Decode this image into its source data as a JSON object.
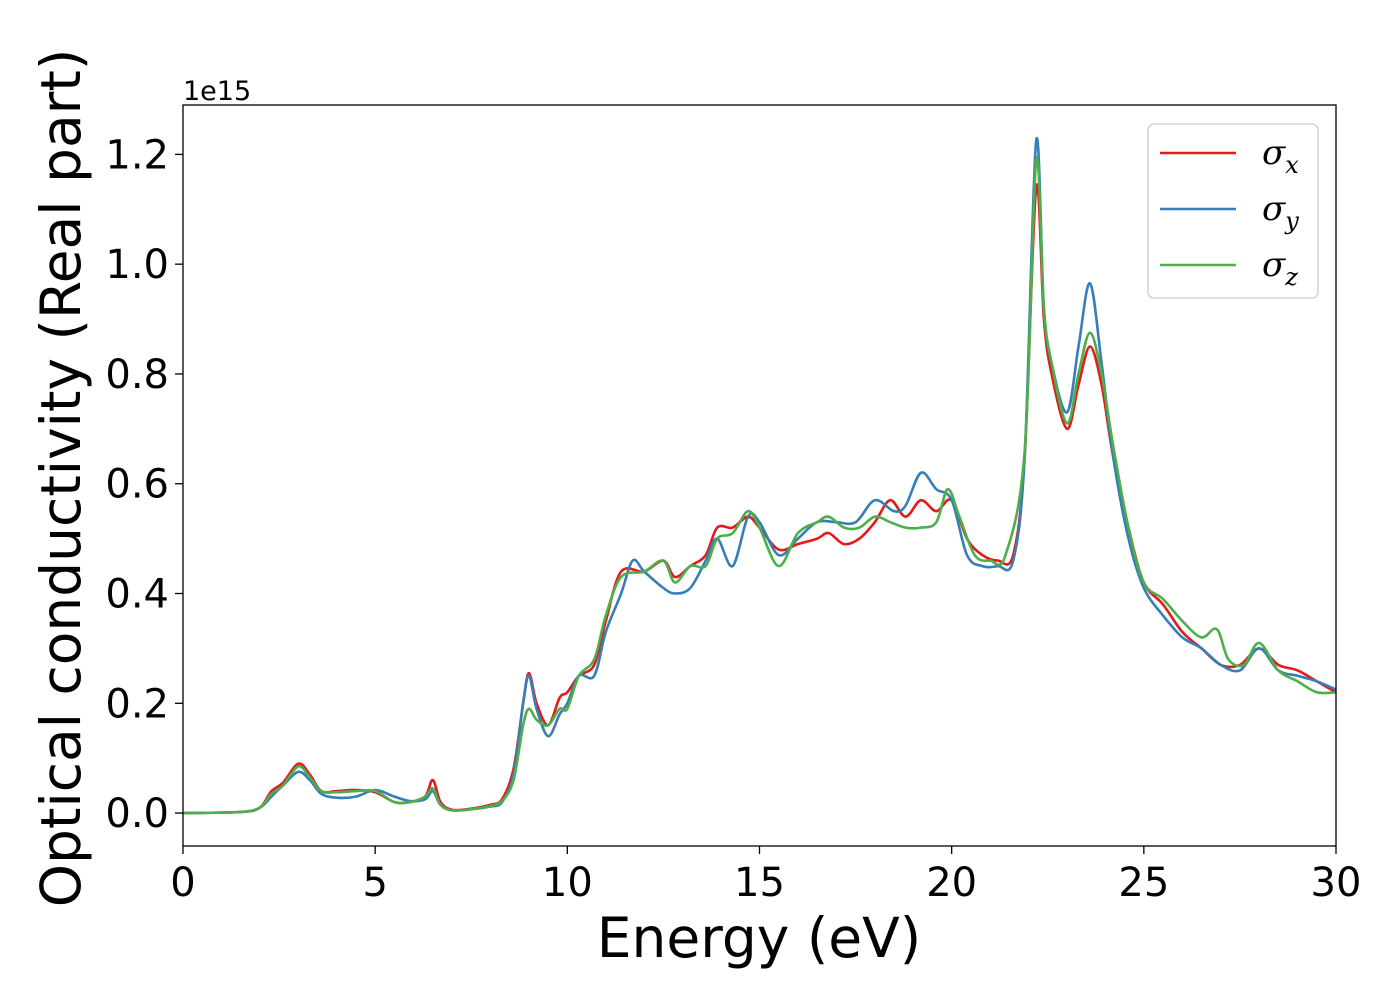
{
  "chart_data": {
    "type": "line",
    "xlabel": "Energy (eV)",
    "ylabel": "Optical conductivity (Real part)",
    "y_offset_label": "1e15",
    "xlim": [
      0,
      30
    ],
    "ylim": [
      -0.06,
      1.29
    ],
    "x_ticks": [
      0,
      5,
      10,
      15,
      20,
      25,
      30
    ],
    "x_tick_labels": [
      "0",
      "5",
      "10",
      "15",
      "20",
      "25",
      "30"
    ],
    "y_ticks": [
      0.0,
      0.2,
      0.4,
      0.6,
      0.8,
      1.0,
      1.2
    ],
    "y_tick_labels": [
      "0.0",
      "0.2",
      "0.4",
      "0.6",
      "0.8",
      "1.0",
      "1.2"
    ],
    "grid": false,
    "legend_position": "top-right",
    "series": [
      {
        "name": "σx",
        "symbol": "σ",
        "subscript": "x",
        "color": "#e41a1c",
        "points": [
          [
            0,
            0
          ],
          [
            1.5,
            0.002
          ],
          [
            2.0,
            0.01
          ],
          [
            2.3,
            0.04
          ],
          [
            2.6,
            0.055
          ],
          [
            3.0,
            0.09
          ],
          [
            3.3,
            0.07
          ],
          [
            3.6,
            0.04
          ],
          [
            4.0,
            0.04
          ],
          [
            4.5,
            0.042
          ],
          [
            5.0,
            0.038
          ],
          [
            5.5,
            0.02
          ],
          [
            5.9,
            0.02
          ],
          [
            6.3,
            0.03
          ],
          [
            6.5,
            0.06
          ],
          [
            6.7,
            0.02
          ],
          [
            7.0,
            0.006
          ],
          [
            7.5,
            0.008
          ],
          [
            8.0,
            0.015
          ],
          [
            8.3,
            0.025
          ],
          [
            8.6,
            0.08
          ],
          [
            8.85,
            0.2
          ],
          [
            9.0,
            0.255
          ],
          [
            9.2,
            0.2
          ],
          [
            9.5,
            0.16
          ],
          [
            9.8,
            0.21
          ],
          [
            10.0,
            0.22
          ],
          [
            10.3,
            0.25
          ],
          [
            10.7,
            0.27
          ],
          [
            11.0,
            0.35
          ],
          [
            11.4,
            0.44
          ],
          [
            12.0,
            0.44
          ],
          [
            12.5,
            0.46
          ],
          [
            12.8,
            0.43
          ],
          [
            13.2,
            0.45
          ],
          [
            13.6,
            0.47
          ],
          [
            13.9,
            0.52
          ],
          [
            14.3,
            0.52
          ],
          [
            14.7,
            0.54
          ],
          [
            15.0,
            0.52
          ],
          [
            15.5,
            0.48
          ],
          [
            16.0,
            0.49
          ],
          [
            16.5,
            0.5
          ],
          [
            16.8,
            0.51
          ],
          [
            17.2,
            0.49
          ],
          [
            17.6,
            0.5
          ],
          [
            18.0,
            0.53
          ],
          [
            18.4,
            0.57
          ],
          [
            18.8,
            0.54
          ],
          [
            19.2,
            0.57
          ],
          [
            19.6,
            0.55
          ],
          [
            20.0,
            0.57
          ],
          [
            20.4,
            0.5
          ],
          [
            20.8,
            0.47
          ],
          [
            21.2,
            0.46
          ],
          [
            21.6,
            0.47
          ],
          [
            21.9,
            0.65
          ],
          [
            22.2,
            1.14
          ],
          [
            22.4,
            0.9
          ],
          [
            22.6,
            0.8
          ],
          [
            23.0,
            0.7
          ],
          [
            23.3,
            0.78
          ],
          [
            23.6,
            0.85
          ],
          [
            23.9,
            0.78
          ],
          [
            24.2,
            0.65
          ],
          [
            24.6,
            0.52
          ],
          [
            25.0,
            0.42
          ],
          [
            25.5,
            0.38
          ],
          [
            26.0,
            0.33
          ],
          [
            26.5,
            0.3
          ],
          [
            27.0,
            0.27
          ],
          [
            27.5,
            0.27
          ],
          [
            28.0,
            0.3
          ],
          [
            28.5,
            0.27
          ],
          [
            29.0,
            0.26
          ],
          [
            29.5,
            0.24
          ],
          [
            30.0,
            0.22
          ]
        ]
      },
      {
        "name": "σy",
        "symbol": "σ",
        "subscript": "y",
        "color": "#377eb8",
        "points": [
          [
            0,
            0
          ],
          [
            1.5,
            0.002
          ],
          [
            2.0,
            0.01
          ],
          [
            2.3,
            0.03
          ],
          [
            2.6,
            0.05
          ],
          [
            3.0,
            0.075
          ],
          [
            3.3,
            0.06
          ],
          [
            3.6,
            0.035
          ],
          [
            4.0,
            0.028
          ],
          [
            4.5,
            0.03
          ],
          [
            5.0,
            0.042
          ],
          [
            5.5,
            0.03
          ],
          [
            5.9,
            0.022
          ],
          [
            6.3,
            0.025
          ],
          [
            6.5,
            0.04
          ],
          [
            6.7,
            0.015
          ],
          [
            7.0,
            0.005
          ],
          [
            7.5,
            0.007
          ],
          [
            8.0,
            0.012
          ],
          [
            8.3,
            0.02
          ],
          [
            8.6,
            0.07
          ],
          [
            8.85,
            0.2
          ],
          [
            9.0,
            0.25
          ],
          [
            9.2,
            0.19
          ],
          [
            9.5,
            0.14
          ],
          [
            9.8,
            0.18
          ],
          [
            10.0,
            0.2
          ],
          [
            10.3,
            0.25
          ],
          [
            10.7,
            0.25
          ],
          [
            11.0,
            0.33
          ],
          [
            11.4,
            0.4
          ],
          [
            11.7,
            0.46
          ],
          [
            12.0,
            0.44
          ],
          [
            12.5,
            0.41
          ],
          [
            12.8,
            0.4
          ],
          [
            13.2,
            0.41
          ],
          [
            13.6,
            0.46
          ],
          [
            13.9,
            0.5
          ],
          [
            14.3,
            0.45
          ],
          [
            14.7,
            0.54
          ],
          [
            15.0,
            0.53
          ],
          [
            15.5,
            0.47
          ],
          [
            16.0,
            0.5
          ],
          [
            16.5,
            0.53
          ],
          [
            17.0,
            0.53
          ],
          [
            17.5,
            0.53
          ],
          [
            18.0,
            0.57
          ],
          [
            18.5,
            0.55
          ],
          [
            18.8,
            0.56
          ],
          [
            19.2,
            0.62
          ],
          [
            19.6,
            0.59
          ],
          [
            20.0,
            0.57
          ],
          [
            20.4,
            0.47
          ],
          [
            20.8,
            0.45
          ],
          [
            21.2,
            0.45
          ],
          [
            21.6,
            0.46
          ],
          [
            21.9,
            0.65
          ],
          [
            22.2,
            1.225
          ],
          [
            22.4,
            0.92
          ],
          [
            22.6,
            0.82
          ],
          [
            23.0,
            0.73
          ],
          [
            23.3,
            0.85
          ],
          [
            23.6,
            0.965
          ],
          [
            23.9,
            0.82
          ],
          [
            24.2,
            0.65
          ],
          [
            24.6,
            0.5
          ],
          [
            25.0,
            0.41
          ],
          [
            25.5,
            0.36
          ],
          [
            26.0,
            0.32
          ],
          [
            26.5,
            0.3
          ],
          [
            27.0,
            0.27
          ],
          [
            27.5,
            0.26
          ],
          [
            28.0,
            0.3
          ],
          [
            28.5,
            0.26
          ],
          [
            29.0,
            0.25
          ],
          [
            29.5,
            0.24
          ],
          [
            30.0,
            0.225
          ]
        ]
      },
      {
        "name": "σz",
        "symbol": "σ",
        "subscript": "z",
        "color": "#4daf4a",
        "points": [
          [
            0,
            0
          ],
          [
            1.5,
            0.002
          ],
          [
            2.0,
            0.01
          ],
          [
            2.3,
            0.035
          ],
          [
            2.6,
            0.05
          ],
          [
            3.0,
            0.085
          ],
          [
            3.3,
            0.065
          ],
          [
            3.6,
            0.04
          ],
          [
            4.0,
            0.038
          ],
          [
            4.5,
            0.04
          ],
          [
            5.0,
            0.04
          ],
          [
            5.5,
            0.02
          ],
          [
            5.9,
            0.02
          ],
          [
            6.3,
            0.03
          ],
          [
            6.5,
            0.045
          ],
          [
            6.7,
            0.015
          ],
          [
            7.0,
            0.005
          ],
          [
            7.5,
            0.007
          ],
          [
            8.0,
            0.013
          ],
          [
            8.3,
            0.022
          ],
          [
            8.6,
            0.06
          ],
          [
            8.85,
            0.16
          ],
          [
            9.0,
            0.19
          ],
          [
            9.2,
            0.17
          ],
          [
            9.5,
            0.16
          ],
          [
            9.8,
            0.19
          ],
          [
            10.0,
            0.19
          ],
          [
            10.3,
            0.25
          ],
          [
            10.7,
            0.28
          ],
          [
            11.0,
            0.36
          ],
          [
            11.4,
            0.43
          ],
          [
            12.0,
            0.44
          ],
          [
            12.5,
            0.46
          ],
          [
            12.8,
            0.42
          ],
          [
            13.2,
            0.45
          ],
          [
            13.6,
            0.45
          ],
          [
            13.9,
            0.5
          ],
          [
            14.3,
            0.51
          ],
          [
            14.7,
            0.55
          ],
          [
            15.0,
            0.52
          ],
          [
            15.5,
            0.45
          ],
          [
            16.0,
            0.51
          ],
          [
            16.5,
            0.53
          ],
          [
            16.8,
            0.54
          ],
          [
            17.2,
            0.52
          ],
          [
            17.6,
            0.52
          ],
          [
            18.0,
            0.54
          ],
          [
            18.4,
            0.53
          ],
          [
            18.8,
            0.52
          ],
          [
            19.2,
            0.52
          ],
          [
            19.6,
            0.53
          ],
          [
            19.9,
            0.59
          ],
          [
            20.2,
            0.54
          ],
          [
            20.6,
            0.47
          ],
          [
            21.0,
            0.46
          ],
          [
            21.4,
            0.47
          ],
          [
            21.9,
            0.66
          ],
          [
            22.2,
            1.19
          ],
          [
            22.4,
            0.92
          ],
          [
            22.6,
            0.82
          ],
          [
            23.0,
            0.71
          ],
          [
            23.3,
            0.8
          ],
          [
            23.6,
            0.875
          ],
          [
            23.9,
            0.8
          ],
          [
            24.2,
            0.67
          ],
          [
            24.6,
            0.52
          ],
          [
            25.0,
            0.42
          ],
          [
            25.5,
            0.39
          ],
          [
            26.0,
            0.35
          ],
          [
            26.5,
            0.32
          ],
          [
            26.9,
            0.335
          ],
          [
            27.2,
            0.28
          ],
          [
            27.6,
            0.27
          ],
          [
            28.0,
            0.31
          ],
          [
            28.5,
            0.26
          ],
          [
            29.0,
            0.24
          ],
          [
            29.5,
            0.22
          ],
          [
            30.0,
            0.22
          ]
        ]
      }
    ]
  }
}
